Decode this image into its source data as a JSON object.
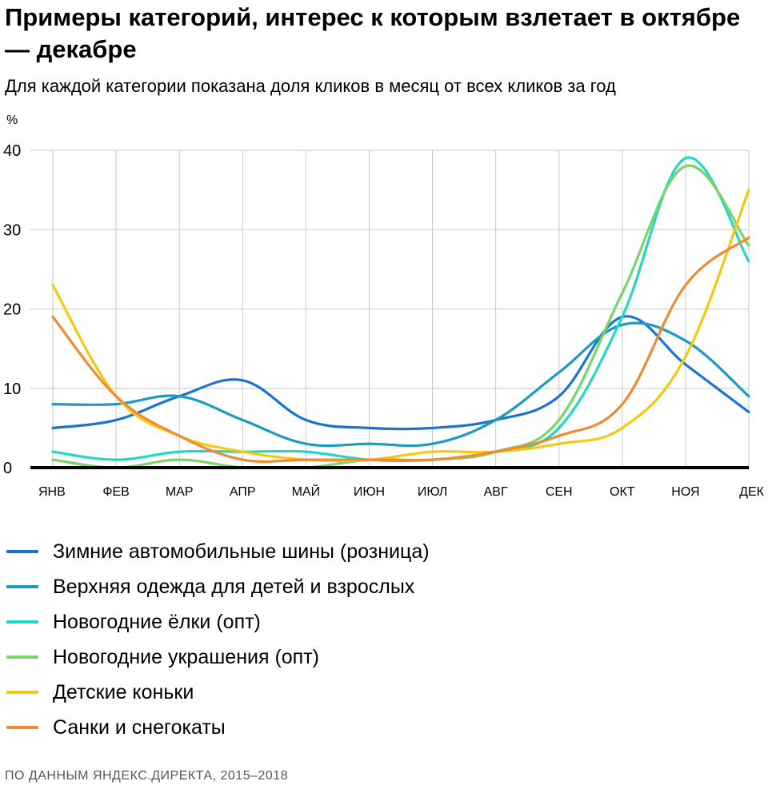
{
  "title": "Примеры категорий, интерес к которым взлетает в октябре — декабре",
  "subtitle": "Для каждой категории показана доля кликов в месяц от всех кликов за год",
  "unit": "%",
  "source": "ПО ДАННЫМ ЯНДЕКС.ДИРЕКТА, 2015–2018",
  "chart_data": {
    "type": "line",
    "title": "Примеры категорий, интерес к которым взлетает в октябре — декабре",
    "subtitle": "Для каждой категории показана доля кликов в месяц от всех кликов за год",
    "ylabel": "%",
    "xlabel": "",
    "ylim": [
      0,
      40
    ],
    "yticks": [
      0,
      10,
      20,
      30,
      40
    ],
    "grid": true,
    "legend": "bottom",
    "categories": [
      "ЯНВ",
      "ФЕВ",
      "МАР",
      "АПР",
      "МАЙ",
      "ИЮН",
      "ИЮЛ",
      "АВГ",
      "СЕН",
      "ОКТ",
      "НОЯ",
      "ДЕК"
    ],
    "series": [
      {
        "name": "Зимние автомобильные шины (розница)",
        "color": "#1a75d2",
        "values": [
          5,
          6,
          9,
          11,
          6,
          5,
          5,
          6,
          9,
          19,
          13,
          7
        ]
      },
      {
        "name": "Верхняя одежда для детей и взрослых",
        "color": "#1b9ac2",
        "values": [
          8,
          8,
          9,
          6,
          3,
          3,
          3,
          6,
          12,
          18,
          16,
          9
        ]
      },
      {
        "name": "Новогодние ёлки (опт)",
        "color": "#20d8c3",
        "values": [
          2,
          1,
          2,
          2,
          2,
          1,
          1,
          2,
          5,
          19,
          39,
          26
        ]
      },
      {
        "name": "Новогодние украшения (опт)",
        "color": "#7bd36a",
        "values": [
          1,
          0,
          1,
          0,
          0,
          1,
          1,
          2,
          6,
          22,
          38,
          28
        ]
      },
      {
        "name": "Детские коньки",
        "color": "#f6c90e",
        "values": [
          23,
          9,
          4,
          2,
          1,
          1,
          2,
          2,
          3,
          5,
          14,
          35
        ]
      },
      {
        "name": "Санки и снегокаты",
        "color": "#f08a34",
        "values": [
          19,
          9,
          4,
          1,
          1,
          1,
          1,
          2,
          4,
          8,
          23,
          29
        ]
      }
    ]
  }
}
